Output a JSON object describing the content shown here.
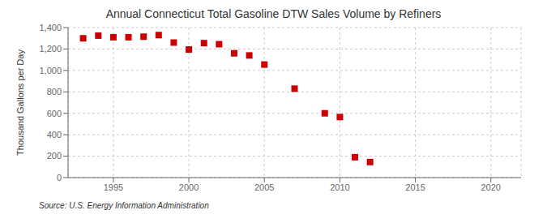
{
  "chart_data": {
    "type": "scatter",
    "title": "Annual Connecticut Total Gasoline DTW Sales Volume by Refiners",
    "y_label": "Thousand Gallons per Day",
    "annotations": [
      "Source: U.S. Energy Information Administration"
    ],
    "x": [
      1993,
      1994,
      1995,
      1996,
      1997,
      1998,
      1999,
      2000,
      2001,
      2002,
      2003,
      2004,
      2005,
      2007,
      2009,
      2010,
      2011,
      2012
    ],
    "values": [
      1300,
      1325,
      1310,
      1310,
      1315,
      1330,
      1260,
      1195,
      1255,
      1245,
      1160,
      1140,
      1055,
      830,
      600,
      565,
      190,
      145
    ],
    "color": "#cc0000",
    "marker": "square",
    "xlim": [
      1992,
      2022
    ],
    "xticks": [
      1995,
      2000,
      2005,
      2010,
      2015,
      2020
    ],
    "ylim": [
      0,
      1400
    ],
    "yticks": [
      0,
      200,
      400,
      600,
      800,
      {
        "value": 1000,
        "label": "1,000"
      },
      {
        "value": 1200,
        "label": "1,200"
      },
      {
        "value": 1400,
        "label": "1,400"
      }
    ],
    "grid": true
  }
}
